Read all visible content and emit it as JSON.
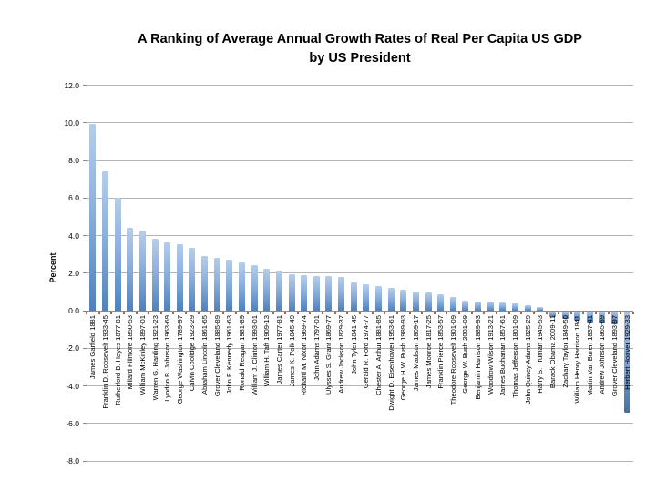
{
  "title_line1": "A Ranking of Average Annual Growth Rates of Real Per Capita US GDP",
  "title_line2": "by US President",
  "chart_data": {
    "type": "bar",
    "title": "A Ranking of Average Annual Growth Rates of Real Per Capita US GDP by US President",
    "xlabel": "",
    "ylabel": "Percent",
    "ylim": [
      -8.0,
      12.0
    ],
    "ytick_step": 2.0,
    "ytick_labels": [
      "12.0",
      "10.0",
      "8.0",
      "6.0",
      "4.0",
      "2.0",
      "0.0",
      "-2.0",
      "-4.0",
      "-6.0",
      "-8.0"
    ],
    "ytick_values": [
      12,
      10,
      8,
      6,
      4,
      2,
      0,
      -2,
      -4,
      -6,
      -8
    ],
    "grid": true,
    "legend_position": "none",
    "categories": [
      "James Garfield 1881",
      "Franklin D. Roosevelt 1933-45",
      "Rutherford B. Hayes 1877-81",
      "Millard Fillmore 1850-53",
      "William McKinley 1897-01",
      "Warren G. Harding 1921-23",
      "Lyndon B. Johnson 1963-69",
      "George Washington 1789-97",
      "Calvin Coolidge 1923-29",
      "Abraham Lincoln 1861-65",
      "Grover Cleveland 1885-89",
      "John F. Kennedy 1961-63",
      "Ronald Reagan 1981-89",
      "William J. Clinton 1993-01",
      "William H. Taft 1909-13",
      "James Carter 1977-81",
      "James K. Polk 1845-49",
      "Richard M. Nixon 1969-74",
      "John Adams 1797-01",
      "Ulysses S. Grant 1869-77",
      "Andrew Jackson 1829-37",
      "John Tyler 1841-45",
      "Gerald R. Ford 1974-77",
      "Chester A. Arthur 1881-85",
      "Dwight D. Eisenhower 1953-61",
      "George H.W. Bush 1989-93",
      "James Madison 1809-17",
      "James Monroe 1817-25",
      "Franklin Pierce 1853-57",
      "Theodore Roosevelt 1901-09",
      "George W. Bush 2001-09",
      "Benjamin Harrison 1889-93",
      "Woodrow Wilson 1913-21",
      "James Buchanan 1857-61",
      "Thomas Jefferson 1801-09",
      "John Quincy Adams 1825-29",
      "Harry S. Truman 1945-53",
      "Barack Obama 2009-11",
      "Zachary Taylor 1849-50",
      "William Henry Harrison 1841",
      "Martin Van Buren 1837-41",
      "Andrew Johnson 1865-69",
      "Grover Cleveland 1893-97",
      "Herbert Hoover 1929-33"
    ],
    "values": [
      9.9,
      7.4,
      6.0,
      4.4,
      4.25,
      3.8,
      3.6,
      3.5,
      3.3,
      2.9,
      2.8,
      2.7,
      2.55,
      2.4,
      2.2,
      2.1,
      1.9,
      1.85,
      1.8,
      1.8,
      1.75,
      1.5,
      1.4,
      1.3,
      1.2,
      1.1,
      1.0,
      0.95,
      0.85,
      0.7,
      0.5,
      0.45,
      0.45,
      0.4,
      0.35,
      0.25,
      0.15,
      -0.3,
      -0.4,
      -0.5,
      -0.6,
      -0.65,
      -0.7,
      -5.4
    ]
  },
  "colors": {
    "bar_gradient_top": "#b5cdea",
    "bar_gradient_mid": "#8db0dc",
    "bar_gradient_bottom": "#4f81bd",
    "gridline": "#b4b4b4",
    "axis": "#8c8c8c",
    "x_tick": "#a8604f",
    "text": "#000000",
    "background": "#ffffff"
  }
}
